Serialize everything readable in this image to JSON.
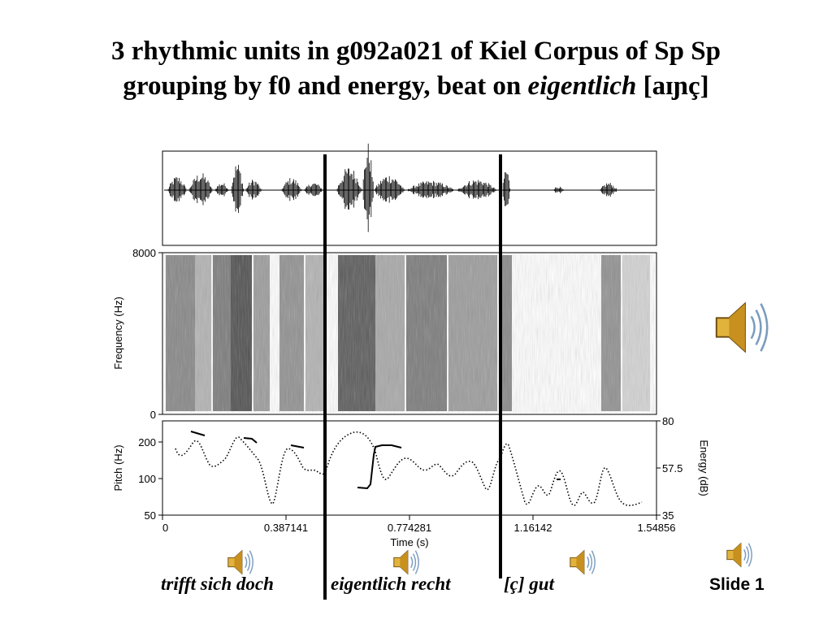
{
  "slide": {
    "title_line1": "3 rhythmic units in g092a021 of Kiel Corpus of Sp Sp",
    "title_line2_prefix": "grouping by f0 and energy, beat on",
    "title_line2_italic": "eigentlich",
    "title_line2_suffix": "[aɪɲç]",
    "slide_number": "Slide 1"
  },
  "captions": {
    "unit1": "trifft sich doch",
    "unit2": "eigentlich recht",
    "unit3": "[ç]  gut"
  },
  "figure": {
    "spectrogram": {
      "ylabel": "Frequency (Hz)",
      "ytick_top": "8000",
      "ytick_bottom": "0"
    },
    "pitch_panel": {
      "left_label": "Pitch (Hz)",
      "right_label": "Energy (dB)",
      "left_ticks": [
        "200",
        "100",
        "50"
      ],
      "right_ticks": [
        "80",
        "57.5",
        "35"
      ]
    },
    "time_axis": {
      "label": "Time (s)",
      "ticks": [
        "0",
        "0.387141",
        "0.774281",
        "1.16142",
        "1.54856"
      ]
    }
  },
  "icons": {
    "speaker": "speaker-icon"
  }
}
